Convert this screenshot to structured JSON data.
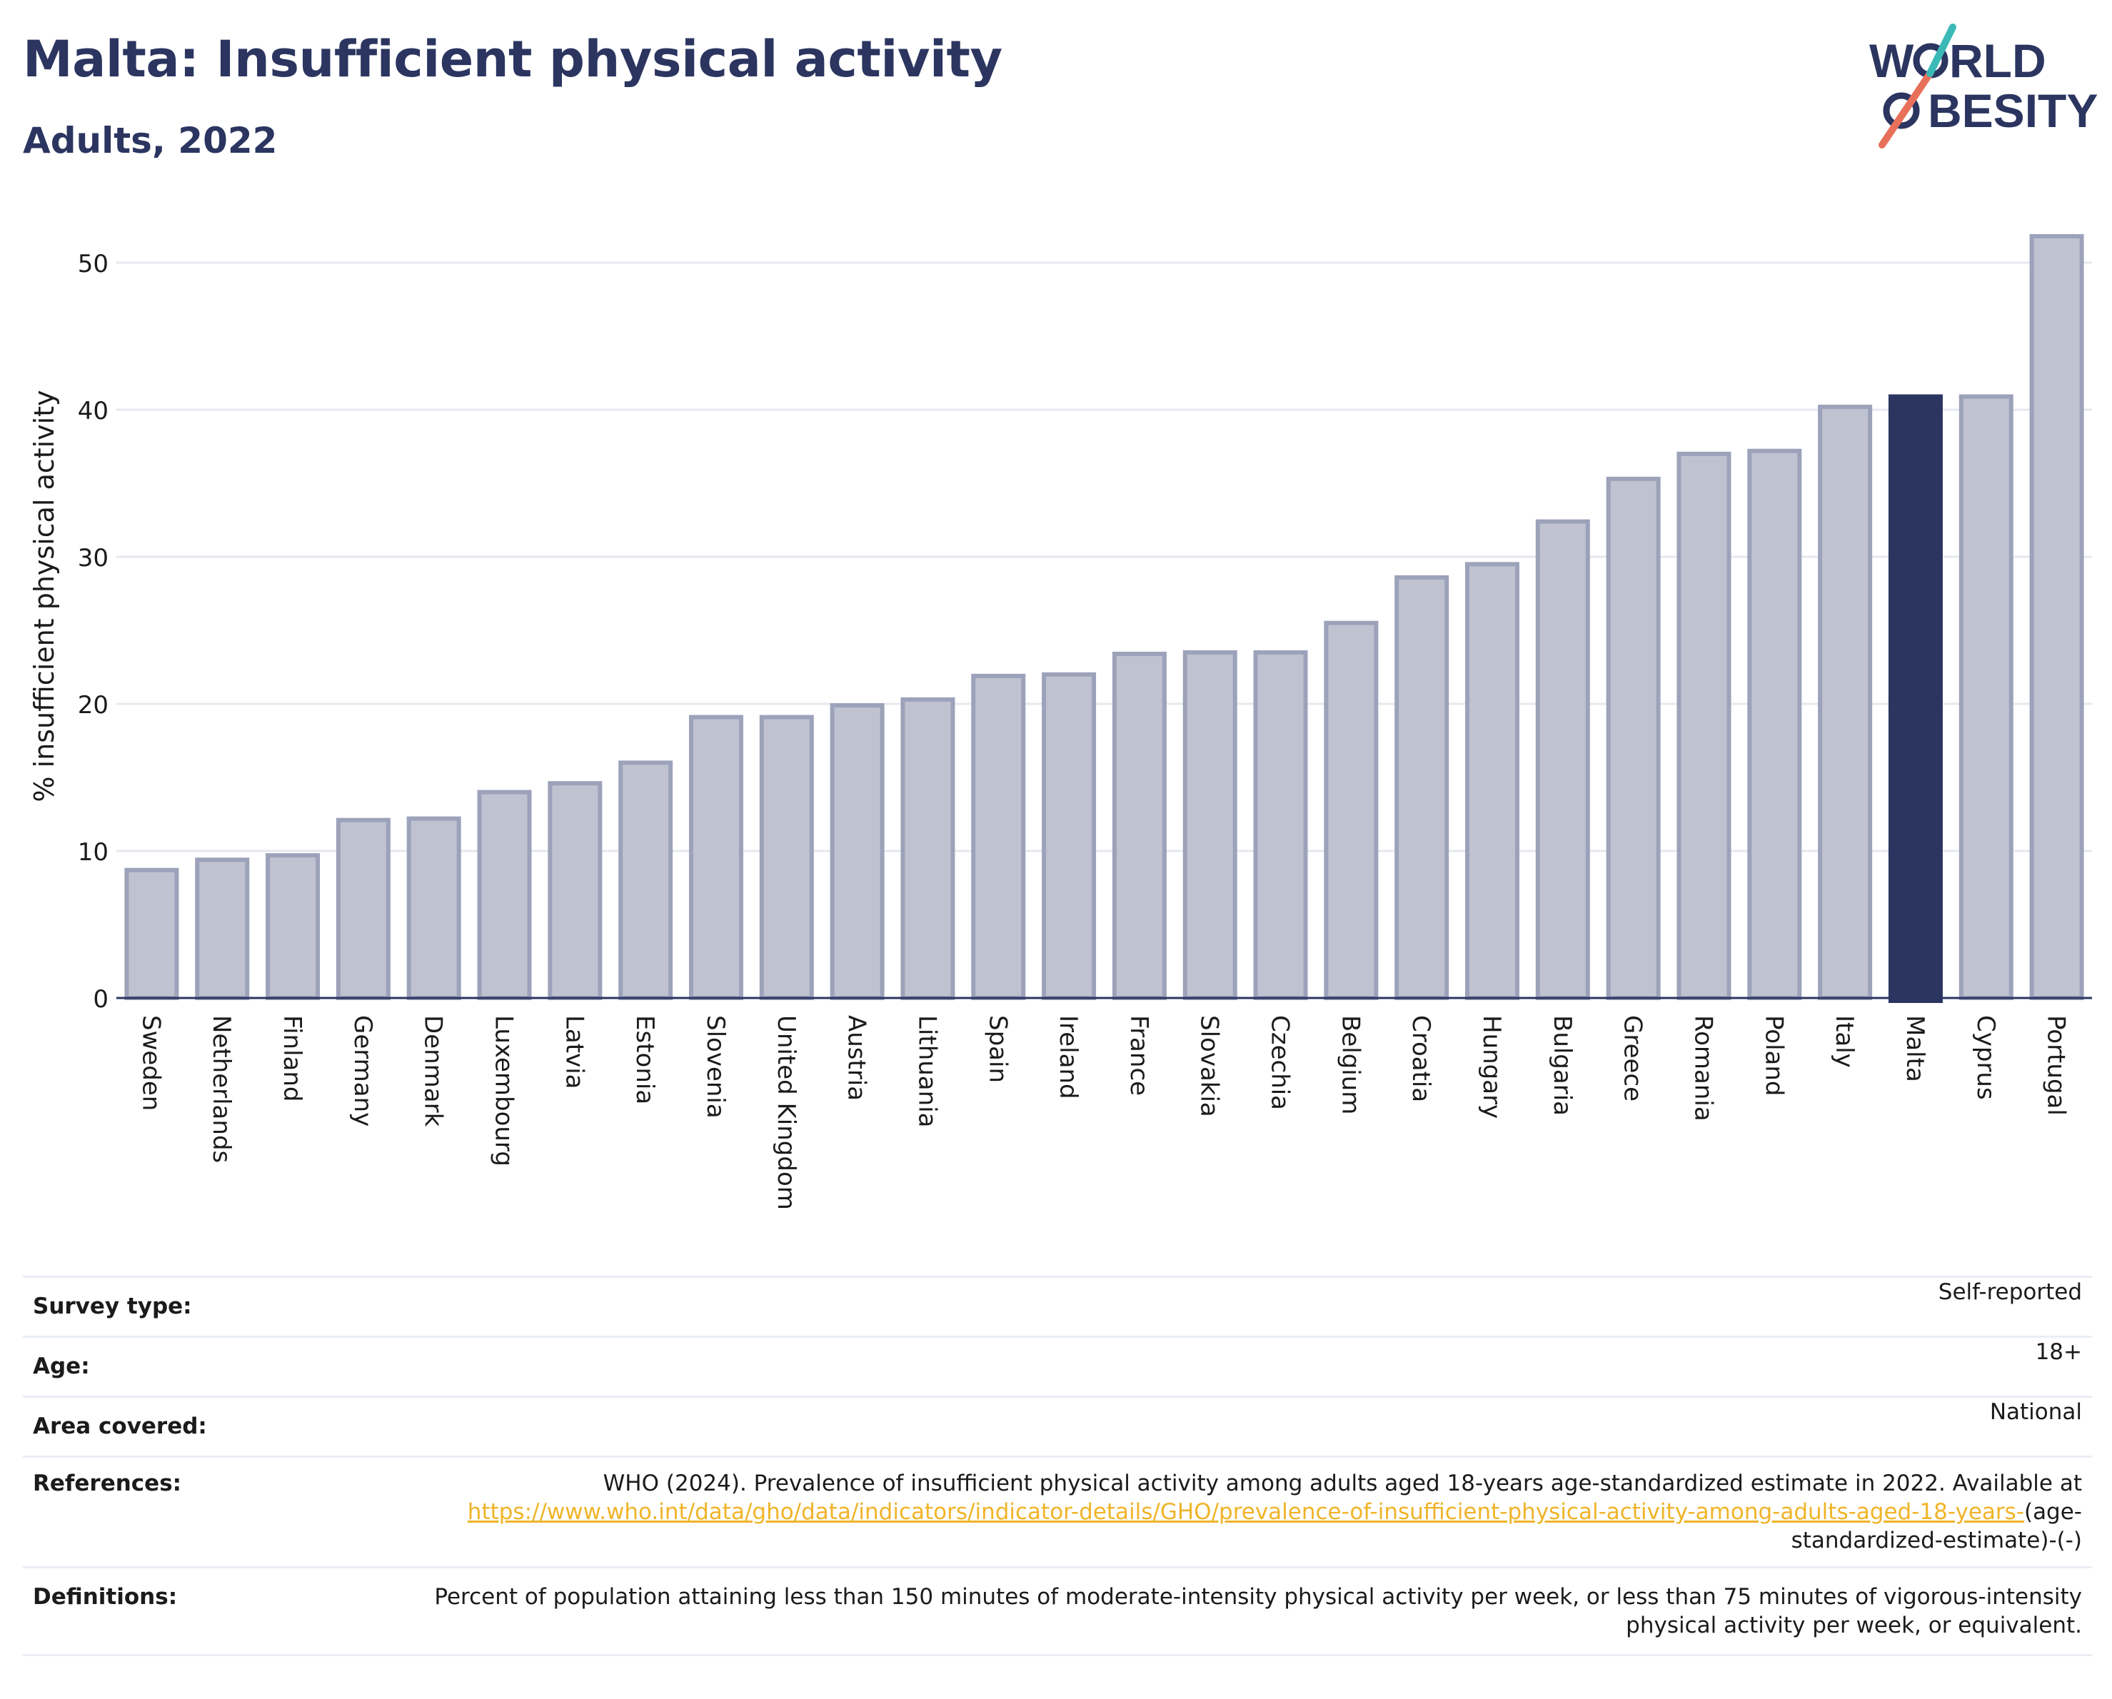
{
  "header": {
    "title": "Malta: Insufficient physical activity",
    "subtitle": "Adults, 2022"
  },
  "logo": {
    "line1": "W",
    "line1_rest": "RLD",
    "line2": "BESITY",
    "slash_colors": [
      "#e8705a",
      "#3bb9b6"
    ]
  },
  "colors": {
    "bar_default": "#bfc2d0",
    "bar_border": "#9ca2ba",
    "bar_highlight": "#2b3560",
    "grid": "#e6e8ef",
    "axis": "#2b3560"
  },
  "chart_data": {
    "type": "bar",
    "title": "",
    "xlabel": "",
    "ylabel": "% insufficient physical activity",
    "ylim": [
      0,
      55
    ],
    "yticks": [
      0,
      10,
      20,
      30,
      40,
      50
    ],
    "grid": true,
    "highlight": "Malta",
    "categories": [
      "Sweden",
      "Netherlands",
      "Finland",
      "Germany",
      "Denmark",
      "Luxembourg",
      "Latvia",
      "Estonia",
      "Slovenia",
      "United Kingdom",
      "Austria",
      "Lithuania",
      "Spain",
      "Ireland",
      "France",
      "Slovakia",
      "Czechia",
      "Belgium",
      "Croatia",
      "Hungary",
      "Bulgaria",
      "Greece",
      "Romania",
      "Poland",
      "Italy",
      "Malta",
      "Cyprus",
      "Portugal"
    ],
    "values": [
      8.7,
      9.4,
      9.7,
      12.1,
      12.2,
      14.0,
      14.6,
      16.0,
      19.1,
      19.1,
      19.9,
      20.3,
      21.9,
      22.0,
      23.4,
      23.5,
      23.5,
      25.5,
      28.6,
      29.5,
      32.4,
      35.3,
      37.0,
      37.2,
      40.2,
      40.9,
      40.9,
      51.8
    ]
  },
  "info": {
    "survey_type": {
      "label": "Survey type:",
      "value": "Self-reported"
    },
    "age": {
      "label": "Age:",
      "value": "18+"
    },
    "area": {
      "label": "Area covered:",
      "value": "National"
    },
    "references": {
      "label": "References:",
      "text": "WHO (2024). Prevalence of insufficient physical activity among adults aged 18-years age-standardized estimate in 2022. Available at",
      "link": "https://www.who.int/data/gho/data/indicators/indicator-details/GHO/prevalence-of-insufficient-physical-activity-among-adults-aged-18-years-",
      "suffix": "(age-standardized-estimate)-(-)"
    },
    "definitions": {
      "label": "Definitions:",
      "value": "Percent of population attaining less than 150 minutes of moderate-intensity physical activity per week, or less than 75 minutes of vigorous-intensity physical activity per week, or equivalent."
    }
  }
}
